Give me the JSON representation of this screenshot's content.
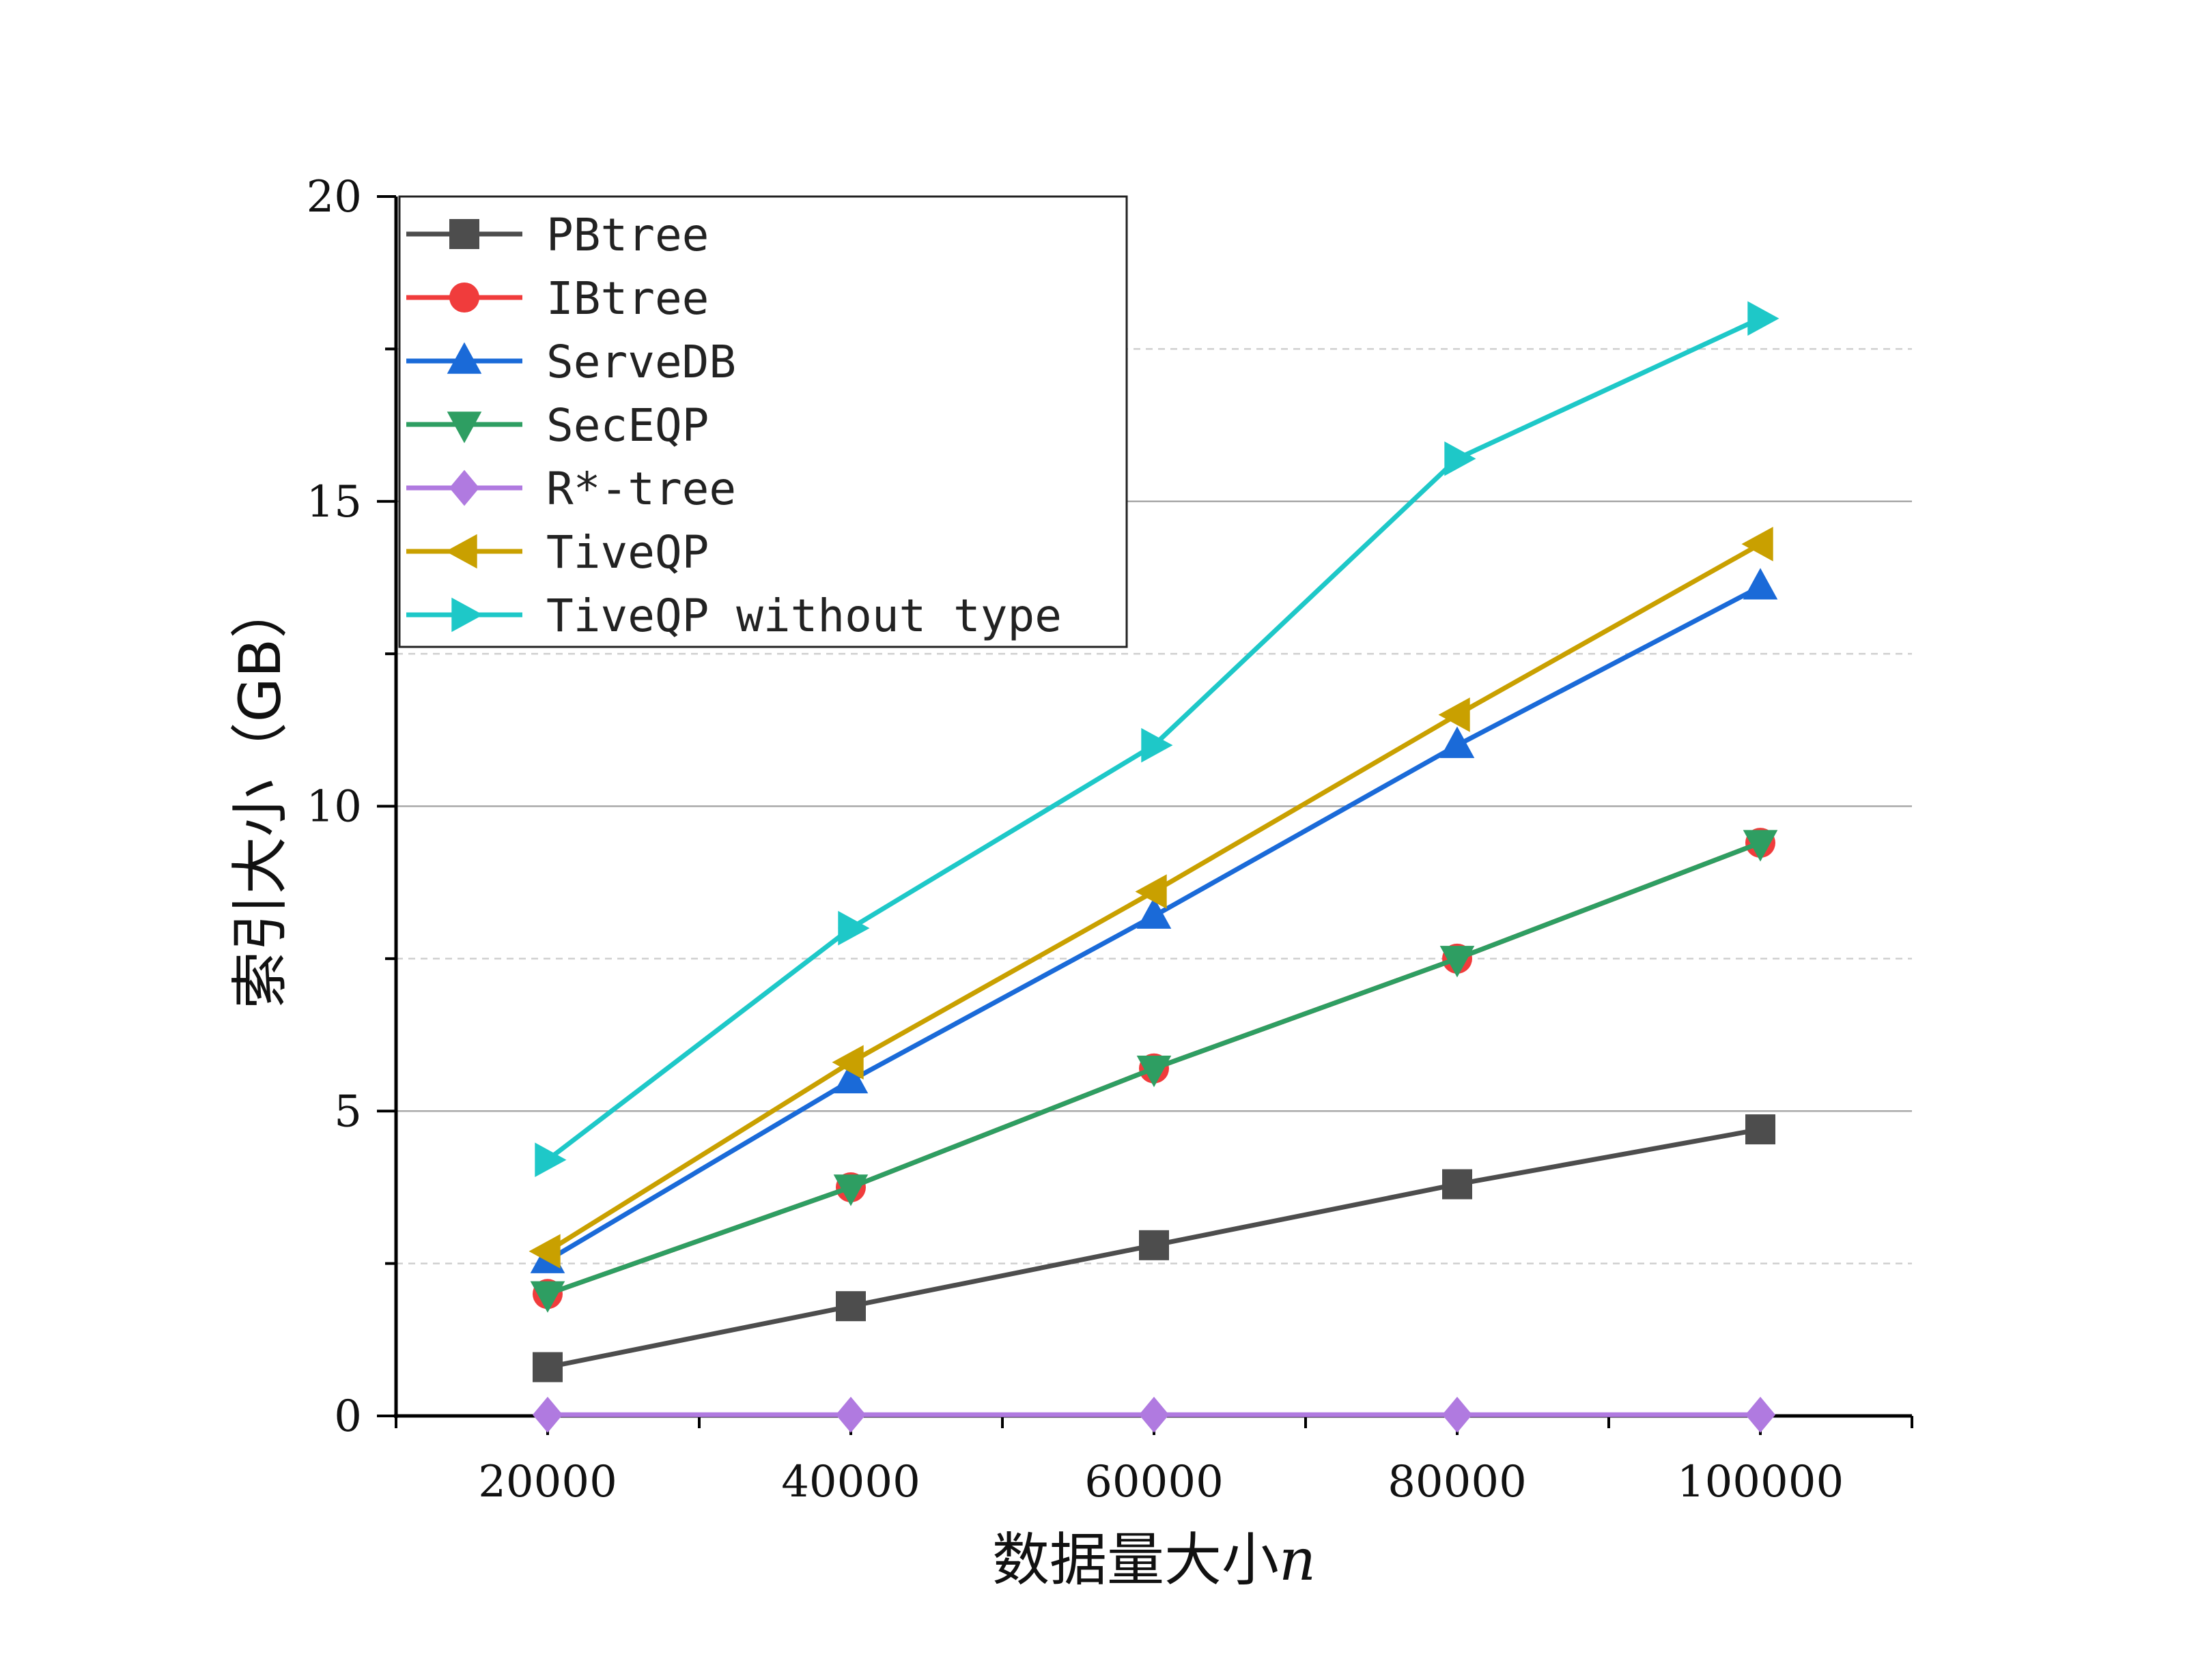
{
  "chart_data": {
    "type": "line",
    "title": "",
    "xlabel": "数据量大小",
    "xlabel_var": "n",
    "ylabel": "索引大小（GB）",
    "x": [
      20000,
      40000,
      60000,
      80000,
      100000
    ],
    "xlim": [
      10000,
      110000
    ],
    "ylim": [
      0,
      20
    ],
    "xticks": [
      20000,
      40000,
      60000,
      80000,
      100000
    ],
    "yticks": [
      0,
      5,
      10,
      15,
      20
    ],
    "grid": "horizontal",
    "legend_position": "top-left",
    "series": [
      {
        "name": "PBtree",
        "color": "#4d4d4d",
        "marker": "square",
        "values": [
          0.8,
          1.8,
          2.8,
          3.8,
          4.7
        ]
      },
      {
        "name": "IBtree",
        "color": "#f03c3c",
        "marker": "circle",
        "values": [
          2.0,
          3.75,
          5.7,
          7.5,
          9.4
        ]
      },
      {
        "name": "ServeDB",
        "color": "#1a6ad8",
        "marker": "triangle-up",
        "values": [
          2.55,
          5.5,
          8.2,
          11.0,
          13.6
        ]
      },
      {
        "name": "SecEQP",
        "color": "#2e9e62",
        "marker": "triangle-down",
        "values": [
          2.0,
          3.75,
          5.7,
          7.5,
          9.4
        ]
      },
      {
        "name": "R*-tree",
        "color": "#b07ae0",
        "marker": "diamond",
        "values": [
          0.02,
          0.02,
          0.02,
          0.02,
          0.02
        ]
      },
      {
        "name": "TiveQP",
        "color": "#c9a000",
        "marker": "triangle-left",
        "values": [
          2.7,
          5.8,
          8.6,
          11.5,
          14.3
        ]
      },
      {
        "name": "TiveQP without type",
        "color": "#1ec8c8",
        "marker": "triangle-right",
        "values": [
          4.2,
          8.0,
          11.0,
          15.7,
          18.0
        ]
      }
    ]
  }
}
